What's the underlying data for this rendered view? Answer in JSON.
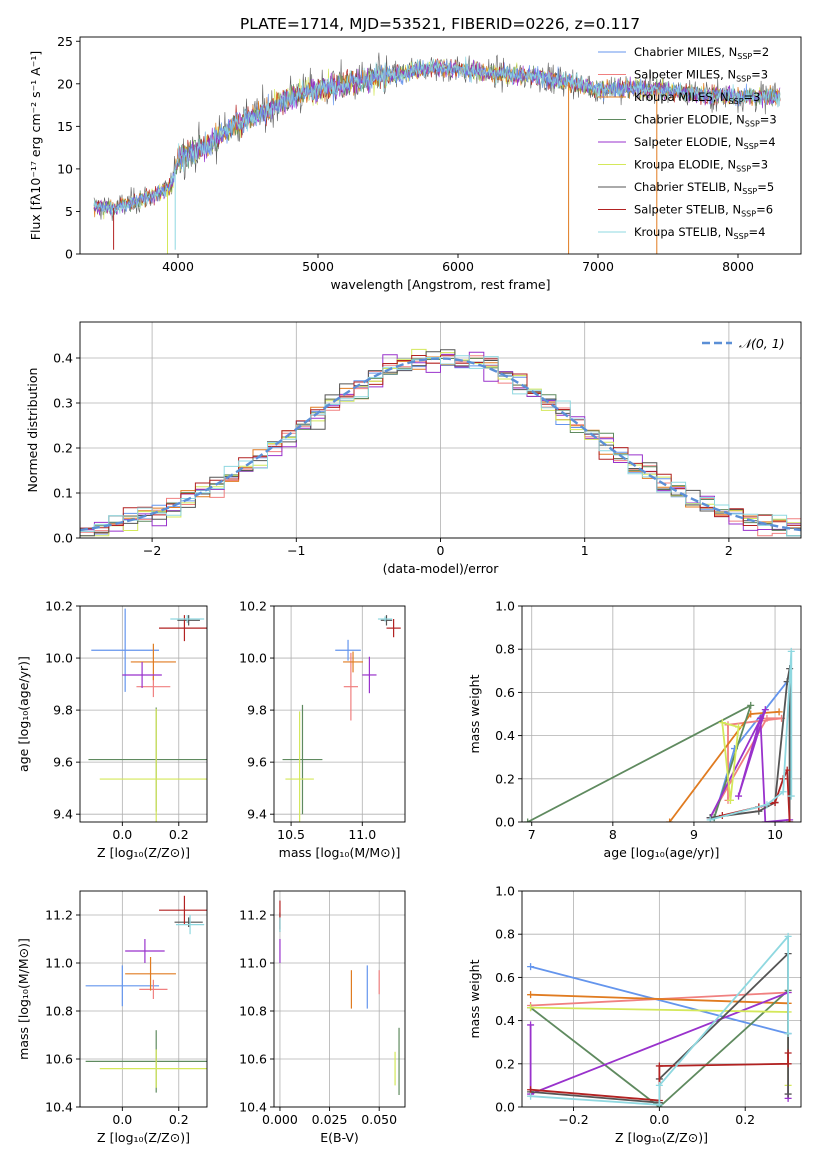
{
  "figure_title": "PLATE=1714, MJD=53521, FIBERID=0226, z=0.117",
  "colors": {
    "Chabrier MILES": "#6495ed",
    "Salpeter MILES": "#f08080",
    "Kroupa MILES": "#e07b20",
    "Chabrier ELODIE": "#5f8a5f",
    "Salpeter ELODIE": "#9932cc",
    "Kroupa ELODIE": "#d4e85a",
    "Chabrier STELIB": "#555555",
    "Salpeter STELIB": "#b22222",
    "Kroupa STELIB": "#8fd8e0",
    "normal": "#5b8fd6"
  },
  "chart_data": [
    {
      "type": "line",
      "panel": "spectrum",
      "xlabel": "wavelength [Angstrom, rest frame]",
      "ylabel": "Flux [fλ10⁻¹⁷ erg cm⁻² s⁻¹ A⁻¹]",
      "xlim": [
        3300,
        8450
      ],
      "ylim": [
        0,
        25.5
      ],
      "xticks": [
        4000,
        5000,
        6000,
        7000,
        8000
      ],
      "yticks": [
        0,
        5,
        10,
        15,
        20,
        25
      ],
      "legend_position": "right",
      "legend": [
        {
          "name": "Chabrier MILES",
          "label": "Chabrier MILES, N",
          "sub": "SSP",
          "n": "=2"
        },
        {
          "name": "Salpeter MILES",
          "label": "Salpeter MILES, N",
          "sub": "SSP",
          "n": "=3"
        },
        {
          "name": "Kroupa MILES",
          "label": "Kroupa MILES, N",
          "sub": "SSP",
          "n": "=3"
        },
        {
          "name": "Chabrier ELODIE",
          "label": "Chabrier ELODIE, N",
          "sub": "SSP",
          "n": "=3"
        },
        {
          "name": "Salpeter ELODIE",
          "label": "Salpeter ELODIE, N",
          "sub": "SSP",
          "n": "=4"
        },
        {
          "name": "Kroupa ELODIE",
          "label": "Kroupa ELODIE, N",
          "sub": "SSP",
          "n": "=3"
        },
        {
          "name": "Chabrier STELIB",
          "label": "Chabrier STELIB, N",
          "sub": "SSP",
          "n": "=5"
        },
        {
          "name": "Salpeter STELIB",
          "label": "Salpeter STELIB, N",
          "sub": "SSP",
          "n": "=6"
        },
        {
          "name": "Kroupa STELIB",
          "label": "Kroupa STELIB, N",
          "sub": "SSP",
          "n": "=4"
        }
      ],
      "continuum": [
        [
          3400,
          5.6
        ],
        [
          3550,
          5.4
        ],
        [
          3700,
          6.2
        ],
        [
          3850,
          7.0
        ],
        [
          3950,
          8.0
        ],
        [
          4000,
          11.2
        ],
        [
          4200,
          12.6
        ],
        [
          4400,
          15.2
        ],
        [
          4600,
          16.6
        ],
        [
          4800,
          18.4
        ],
        [
          5000,
          19.4
        ],
        [
          5200,
          19.9
        ],
        [
          5400,
          20.7
        ],
        [
          5600,
          21.2
        ],
        [
          5800,
          22.0
        ],
        [
          6000,
          21.7
        ],
        [
          6200,
          21.3
        ],
        [
          6400,
          21.0
        ],
        [
          6600,
          20.8
        ],
        [
          6800,
          20.2
        ],
        [
          7000,
          19.4
        ],
        [
          7200,
          19.5
        ],
        [
          7400,
          19.4
        ],
        [
          7600,
          19.0
        ],
        [
          7800,
          18.7
        ],
        [
          8000,
          18.5
        ],
        [
          8200,
          18.5
        ],
        [
          8300,
          18.6
        ]
      ],
      "spikes_down": [
        [
          3540,
          0.5,
          "Salpeter STELIB"
        ],
        [
          3925,
          0,
          "Kroupa ELODIE"
        ],
        [
          3980,
          0.5,
          "Kroupa STELIB"
        ],
        [
          6790,
          0,
          "Kroupa MILES"
        ],
        [
          7420,
          0,
          "Kroupa MILES"
        ]
      ]
    },
    {
      "type": "line",
      "panel": "residual-histogram",
      "xlabel": "(data-model)/error",
      "ylabel": "Normed distribution",
      "xlim": [
        -2.5,
        2.5
      ],
      "ylim": [
        0,
        0.48
      ],
      "xticks": [
        -2,
        -1,
        0,
        1,
        2
      ],
      "yticks": [
        0.0,
        0.1,
        0.2,
        0.3,
        0.4
      ],
      "legend_label": "𝒩(0, 1)",
      "legend_position": "top-right",
      "bin_width": 0.1
    },
    {
      "type": "scatter",
      "panel": "Z-age",
      "xlabel": "Z [log₁₀(Z/Z⊙)]",
      "ylabel": "age  [log₁₀(age/yr)]",
      "xlim": [
        -0.15,
        0.3
      ],
      "ylim": [
        9.37,
        10.2
      ],
      "xticks": [
        0.0,
        0.2
      ],
      "yticks": [
        9.4,
        9.6,
        9.8,
        10.0,
        10.2
      ],
      "points": [
        {
          "series": "Chabrier MILES",
          "x": 0.01,
          "y": 10.03,
          "xerr": 0.12,
          "yerr": 0.16
        },
        {
          "series": "Salpeter MILES",
          "x": 0.11,
          "y": 9.89,
          "xerr": 0.06,
          "yerr": 0.04
        },
        {
          "series": "Kroupa MILES",
          "x": 0.11,
          "y": 9.985,
          "xerr": 0.08,
          "yerr": 0.07
        },
        {
          "series": "Chabrier ELODIE",
          "x": 0.12,
          "y": 9.61,
          "xerr": 0.24,
          "yerr": 0.2
        },
        {
          "series": "Salpeter ELODIE",
          "x": 0.07,
          "y": 9.935,
          "xerr": 0.07,
          "yerr": 0.05
        },
        {
          "series": "Kroupa ELODIE",
          "x": 0.12,
          "y": 9.535,
          "xerr": 0.2,
          "yerr": 0.27
        },
        {
          "series": "Chabrier STELIB",
          "x": 0.235,
          "y": 10.145,
          "xerr": 0.04,
          "yerr": 0.02
        },
        {
          "series": "Salpeter STELIB",
          "x": 0.22,
          "y": 10.115,
          "xerr": 0.09,
          "yerr": 0.05
        },
        {
          "series": "Kroupa STELIB",
          "x": 0.23,
          "y": 10.15,
          "xerr": 0.06,
          "yerr": 0.015
        }
      ]
    },
    {
      "type": "scatter",
      "panel": "mass-age",
      "xlabel": "mass [log₁₀(M/M⊙)]",
      "ylabel": "",
      "xlim": [
        10.38,
        11.3
      ],
      "ylim": [
        9.37,
        10.2
      ],
      "xticks": [
        10.5,
        11.0
      ],
      "yticks": [
        9.4,
        9.6,
        9.8,
        10.0,
        10.2
      ],
      "points": [
        {
          "series": "Chabrier MILES",
          "x": 10.9,
          "y": 10.03,
          "xerr": 0.09,
          "yerr": 0.04
        },
        {
          "series": "Salpeter MILES",
          "x": 10.92,
          "y": 9.89,
          "xerr": 0.05,
          "yerr": 0.13
        },
        {
          "series": "Kroupa MILES",
          "x": 10.935,
          "y": 9.985,
          "xerr": 0.07,
          "yerr": 0.04
        },
        {
          "series": "Chabrier ELODIE",
          "x": 10.58,
          "y": 9.61,
          "xerr": 0.14,
          "yerr": 0.21
        },
        {
          "series": "Salpeter ELODIE",
          "x": 11.05,
          "y": 9.935,
          "xerr": 0.05,
          "yerr": 0.07
        },
        {
          "series": "Kroupa ELODIE",
          "x": 10.56,
          "y": 9.535,
          "xerr": 0.1,
          "yerr": 0.26
        },
        {
          "series": "Chabrier STELIB",
          "x": 11.17,
          "y": 10.145,
          "xerr": 0.04,
          "yerr": 0.02
        },
        {
          "series": "Salpeter STELIB",
          "x": 11.22,
          "y": 10.115,
          "xerr": 0.05,
          "yerr": 0.035
        },
        {
          "series": "Kroupa STELIB",
          "x": 11.16,
          "y": 10.15,
          "xerr": 0.05,
          "yerr": 0.01
        }
      ]
    },
    {
      "type": "line",
      "panel": "age-weight",
      "xlabel": "age  [log₁₀(age/yr)]",
      "ylabel": "mass weight",
      "xlim": [
        6.88,
        10.32
      ],
      "ylim": [
        0,
        1.0
      ],
      "xticks": [
        7,
        8,
        9,
        10
      ],
      "yticks": [
        0.0,
        0.2,
        0.4,
        0.6,
        0.8,
        1.0
      ],
      "series": [
        {
          "name": "Chabrier MILES",
          "points": [
            [
              9.25,
              0.02
            ],
            [
              9.5,
              0.34
            ],
            [
              10.15,
              0.65
            ]
          ]
        },
        {
          "name": "Salpeter MILES",
          "points": [
            [
              9.2,
              0.02
            ],
            [
              9.9,
              0.48
            ],
            [
              10.08,
              0.48
            ],
            [
              9.42,
              0.45
            ],
            [
              9.42,
              0.1
            ]
          ]
        },
        {
          "name": "Kroupa MILES",
          "points": [
            [
              8.7,
              0.0
            ],
            [
              9.7,
              0.5
            ],
            [
              10.05,
              0.51
            ]
          ]
        },
        {
          "name": "Chabrier ELODIE",
          "points": [
            [
              6.95,
              0.0
            ],
            [
              9.7,
              0.54
            ],
            [
              9.25,
              0.02
            ]
          ]
        },
        {
          "name": "Salpeter ELODIE",
          "points": [
            [
              9.2,
              0.02
            ],
            [
              9.88,
              0.52
            ],
            [
              9.55,
              0.12
            ],
            [
              9.82,
              0.48
            ],
            [
              9.88,
              0.0
            ],
            [
              10.18,
              0.01
            ]
          ]
        },
        {
          "name": "Kroupa ELODIE",
          "points": [
            [
              9.45,
              0.1
            ],
            [
              9.55,
              0.44
            ],
            [
              9.35,
              0.46
            ],
            [
              9.45,
              0.1
            ]
          ]
        },
        {
          "name": "Chabrier STELIB",
          "points": [
            [
              9.2,
              0.02
            ],
            [
              9.8,
              0.05
            ],
            [
              10.0,
              0.09
            ],
            [
              10.15,
              0.65
            ],
            [
              10.18,
              0.71
            ],
            [
              10.18,
              0.0
            ]
          ]
        },
        {
          "name": "Salpeter STELIB",
          "points": [
            [
              9.35,
              0.03
            ],
            [
              9.8,
              0.07
            ],
            [
              10.0,
              0.09
            ],
            [
              10.1,
              0.2
            ],
            [
              10.15,
              0.24
            ],
            [
              10.18,
              0.0
            ]
          ]
        },
        {
          "name": "Kroupa STELIB",
          "points": [
            [
              9.2,
              0.01
            ],
            [
              9.9,
              0.08
            ],
            [
              10.1,
              0.14
            ],
            [
              10.2,
              0.79
            ],
            [
              10.2,
              0.12
            ]
          ]
        }
      ]
    },
    {
      "type": "scatter",
      "panel": "Z-mass",
      "xlabel": "Z [log₁₀(Z/Z⊙)]",
      "ylabel": "mass [log₁₀(M/M⊙)]",
      "xlim": [
        -0.15,
        0.3
      ],
      "ylim": [
        10.4,
        11.3
      ],
      "xticks": [
        0.0,
        0.2
      ],
      "yticks": [
        10.4,
        10.6,
        10.8,
        11.0,
        11.2
      ],
      "points": [
        {
          "series": "Chabrier MILES",
          "x": 0.0,
          "y": 10.905,
          "xerr": 0.13,
          "yerr": 0.085
        },
        {
          "series": "Salpeter MILES",
          "x": 0.11,
          "y": 10.89,
          "xerr": 0.05,
          "yerr": 0.04
        },
        {
          "series": "Kroupa MILES",
          "x": 0.1,
          "y": 10.955,
          "xerr": 0.09,
          "yerr": 0.07
        },
        {
          "series": "Chabrier ELODIE",
          "x": 0.12,
          "y": 10.59,
          "xerr": 0.25,
          "yerr": 0.13
        },
        {
          "series": "Salpeter ELODIE",
          "x": 0.08,
          "y": 11.05,
          "xerr": 0.07,
          "yerr": 0.05
        },
        {
          "series": "Kroupa ELODIE",
          "x": 0.12,
          "y": 10.56,
          "xerr": 0.2,
          "yerr": 0.08
        },
        {
          "series": "Chabrier STELIB",
          "x": 0.235,
          "y": 11.17,
          "xerr": 0.05,
          "yerr": 0.02
        },
        {
          "series": "Salpeter STELIB",
          "x": 0.22,
          "y": 11.22,
          "xerr": 0.09,
          "yerr": 0.06
        },
        {
          "series": "Kroupa STELIB",
          "x": 0.24,
          "y": 11.16,
          "xerr": 0.05,
          "yerr": 0.04
        }
      ]
    },
    {
      "type": "scatter",
      "panel": "ebv-mass",
      "xlabel": "E(B-V)",
      "ylabel": "",
      "xlim": [
        -0.003,
        0.063
      ],
      "ylim": [
        10.4,
        11.3
      ],
      "xticks": [
        0.0,
        0.025,
        0.05
      ],
      "yticks": [
        10.4,
        10.6,
        10.8,
        11.0,
        11.2
      ],
      "points": [
        {
          "series": "Chabrier MILES",
          "x": 0.044,
          "y": 10.9,
          "xerr": 0,
          "yerr": 0.09
        },
        {
          "series": "Salpeter MILES",
          "x": 0.05,
          "y": 10.92,
          "xerr": 0,
          "yerr": 0.05
        },
        {
          "series": "Kroupa MILES",
          "x": 0.036,
          "y": 10.89,
          "xerr": 0,
          "yerr": 0.08
        },
        {
          "series": "Chabrier ELODIE",
          "x": 0.06,
          "y": 10.59,
          "xerr": 0,
          "yerr": 0.14
        },
        {
          "series": "Salpeter ELODIE",
          "x": 0.0,
          "y": 11.05,
          "xerr": 0,
          "yerr": 0.05
        },
        {
          "series": "Kroupa ELODIE",
          "x": 0.058,
          "y": 10.56,
          "xerr": 0,
          "yerr": 0.07
        },
        {
          "series": "Chabrier STELIB",
          "x": 0.0,
          "y": 11.17,
          "xerr": 0,
          "yerr": 0.04
        },
        {
          "series": "Salpeter STELIB",
          "x": 0.0,
          "y": 11.2,
          "xerr": 0,
          "yerr": 0.06
        },
        {
          "series": "Kroupa STELIB",
          "x": 0.0,
          "y": 11.16,
          "xerr": 0,
          "yerr": 0.03
        }
      ]
    },
    {
      "type": "line",
      "panel": "Z-weight",
      "xlabel": "Z [log₁₀(Z/Z⊙)]",
      "ylabel": "mass weight",
      "xlim": [
        -0.32,
        0.33
      ],
      "ylim": [
        0,
        1.0
      ],
      "xticks": [
        -0.2,
        0.0,
        0.2
      ],
      "yticks": [
        0.0,
        0.2,
        0.4,
        0.6,
        0.8,
        1.0
      ],
      "series": [
        {
          "name": "Chabrier MILES",
          "points": [
            [
              -0.3,
              0.65
            ],
            [
              0.3,
              0.34
            ]
          ]
        },
        {
          "name": "Salpeter MILES",
          "points": [
            [
              -0.3,
              0.47
            ],
            [
              0.3,
              0.53
            ]
          ]
        },
        {
          "name": "Kroupa MILES",
          "points": [
            [
              -0.3,
              0.52
            ],
            [
              0.3,
              0.48
            ]
          ]
        },
        {
          "name": "Chabrier ELODIE",
          "points": [
            [
              -0.3,
              0.46
            ],
            [
              0.0,
              0.0
            ],
            [
              0.3,
              0.54
            ]
          ]
        },
        {
          "name": "Salpeter ELODIE",
          "points": [
            [
              -0.3,
              0.38
            ],
            [
              -0.3,
              0.06
            ],
            [
              0.3,
              0.53
            ],
            [
              0.3,
              0.04
            ]
          ]
        },
        {
          "name": "Kroupa ELODIE",
          "points": [
            [
              -0.3,
              0.46
            ],
            [
              0.3,
              0.44
            ],
            [
              0.3,
              0.1
            ]
          ]
        },
        {
          "name": "Chabrier STELIB",
          "points": [
            [
              -0.3,
              0.07
            ],
            [
              0.0,
              0.02
            ],
            [
              0.0,
              0.13
            ],
            [
              0.3,
              0.71
            ],
            [
              0.3,
              0.06
            ]
          ]
        },
        {
          "name": "Salpeter STELIB",
          "points": [
            [
              -0.3,
              0.08
            ],
            [
              0.0,
              0.03
            ],
            [
              0.0,
              0.19
            ],
            [
              0.3,
              0.2
            ],
            [
              0.3,
              0.25
            ]
          ]
        },
        {
          "name": "Kroupa STELIB",
          "points": [
            [
              -0.3,
              0.05
            ],
            [
              0.0,
              0.01
            ],
            [
              0.0,
              0.1
            ],
            [
              0.3,
              0.79
            ],
            [
              0.3,
              0.34
            ]
          ]
        }
      ]
    }
  ]
}
